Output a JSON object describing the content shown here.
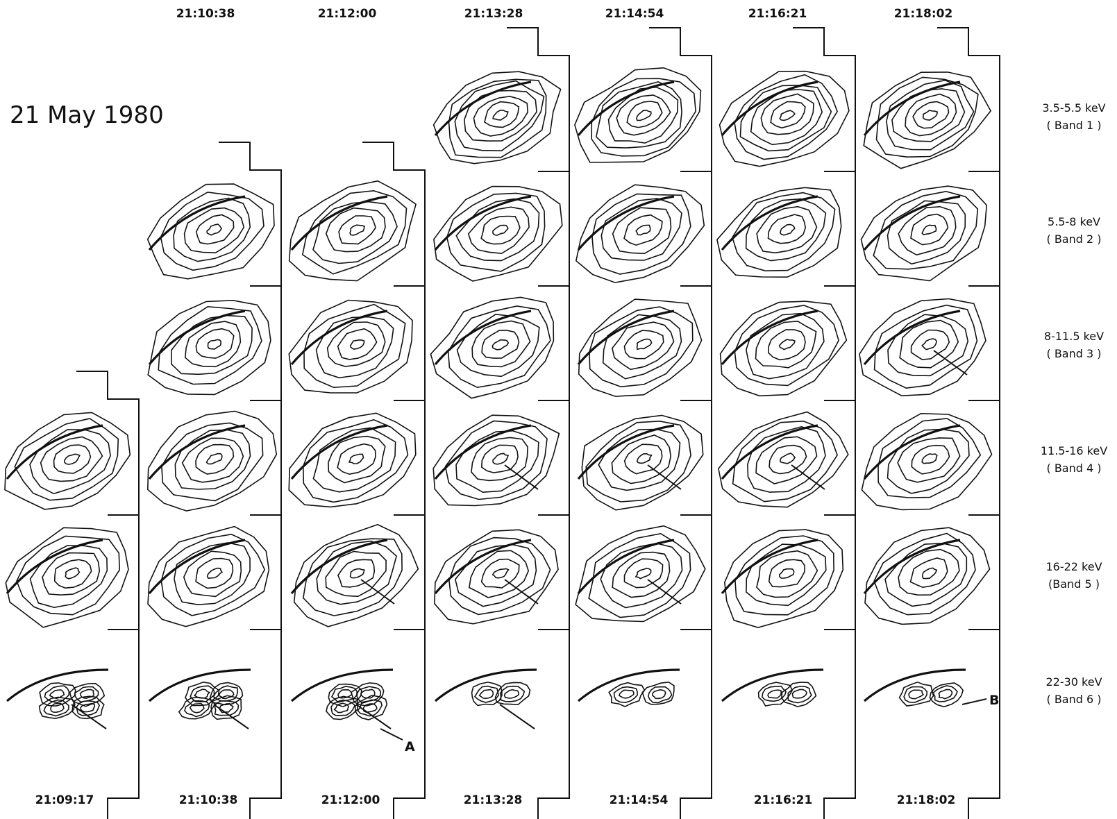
{
  "title": "21 May 1980",
  "times_top": [
    "21:10:38",
    "21:12:00",
    "21:13:28",
    "21:14:54",
    "21:16:21",
    "21:18:02"
  ],
  "times_bottom": [
    "21:09:17",
    "21:10:38",
    "21:12:00",
    "21:13:28",
    "21:14:54",
    "21:16:21",
    "21:18:02"
  ],
  "bands": [
    {
      "energy": "3.5-5.5 keV",
      "band": "( Band 1 )"
    },
    {
      "energy": "5.5-8 keV",
      "band": "( Band 2 )"
    },
    {
      "energy": "8-11.5 keV",
      "band": "( Band 3 )"
    },
    {
      "energy": "11.5-16 keV",
      "band": "( Band 4 )"
    },
    {
      "energy": "16-22 keV",
      "band": "(Band 5 )"
    },
    {
      "energy": "22-30 keV",
      "band": "( Band 6 )"
    }
  ],
  "markers": {
    "a": "A",
    "b": "B"
  },
  "columns": [
    {
      "time": "21:09:17",
      "first_band": 4
    },
    {
      "time": "21:10:38",
      "first_band": 2
    },
    {
      "time": "21:12:00",
      "first_band": 2
    },
    {
      "time": "21:13:28",
      "first_band": 1
    },
    {
      "time": "21:14:54",
      "first_band": 1
    },
    {
      "time": "21:16:21",
      "first_band": 1
    },
    {
      "time": "21:18:02",
      "first_band": 1
    }
  ]
}
